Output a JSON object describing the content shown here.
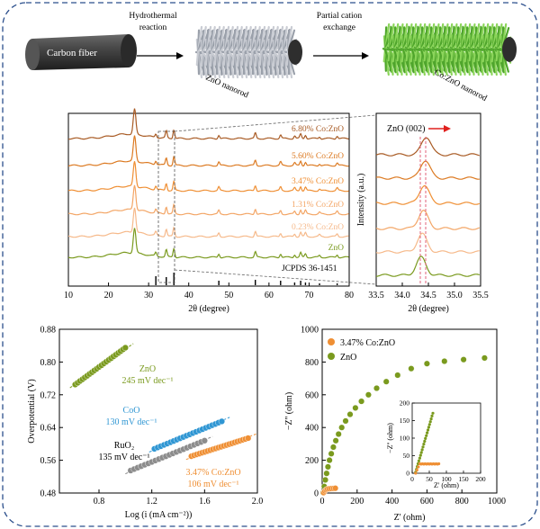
{
  "figure": {
    "schematic": {
      "label_fiber": "Carbon fiber",
      "step1": [
        "Hydrothermal",
        "reaction"
      ],
      "label_nanorod": "ZnO nanorod",
      "step2": [
        "Partial cation",
        "exchange"
      ],
      "label_co_nanorod": "Co:ZnO nanorod"
    },
    "colors": {
      "ZnO": "#7a9a1e",
      "0.23%": "#f6b98a",
      "1.31%": "#f3a565",
      "3.47%": "#ef8f34",
      "5.60%": "#dc7a22",
      "6.80%": "#a85a23",
      "CoO": "#2f96d3",
      "RuO2": "#8c8c8c",
      "fiber": "#3a3a3a"
    }
  },
  "chart_data": [
    {
      "type": "line",
      "panel": "XRD",
      "xlabel": "2θ (degree)",
      "ylabel": "",
      "xlim": [
        10,
        80
      ],
      "xticks": [
        10,
        20,
        30,
        40,
        50,
        60,
        70,
        80
      ],
      "series": [
        {
          "name": "6.80% Co:ZnO"
        },
        {
          "name": "5.60% Co:ZnO"
        },
        {
          "name": "3.47% Co:ZnO"
        },
        {
          "name": "1.31% Co:ZnO"
        },
        {
          "name": "0.23% Co:ZnO"
        },
        {
          "name": "ZnO"
        }
      ],
      "peaks": [
        26.5,
        31.8,
        34.4,
        36.3,
        47.5,
        56.6,
        62.9,
        66.4,
        67.9,
        69.1,
        72.6,
        77.0
      ],
      "reference": {
        "name": "JCPDS 36-1451",
        "positions": [
          31.8,
          34.4,
          36.3,
          47.5,
          56.6,
          62.9,
          66.4,
          67.9,
          69.1,
          72.6,
          77.0
        ]
      }
    },
    {
      "type": "line",
      "panel": "XRD zoom",
      "title": "ZnO (002)",
      "xlabel": "2θ (degree)",
      "ylabel": "Intensity (a.u.)",
      "xlim": [
        33.5,
        35.5
      ],
      "xticks": [
        "33.5",
        "34.0",
        "34.5",
        "35.0",
        "35.5"
      ],
      "reference_lines": [
        34.35,
        34.45
      ]
    },
    {
      "type": "scatter",
      "panel": "Tafel",
      "xlabel": "Log (i (mA cm⁻²))",
      "ylabel": "Overpotential (V)",
      "xlim": [
        0.5,
        2.0
      ],
      "ylim": [
        0.48,
        0.88
      ],
      "xticks": [
        "0.8",
        "1.2",
        "1.6",
        "2.0"
      ],
      "yticks": [
        "0.48",
        "0.56",
        "0.64",
        "0.72",
        "0.80",
        "0.88"
      ],
      "series": [
        {
          "name": "ZnO",
          "label": "ZnO",
          "slope": "245 mV dec⁻¹",
          "x0": 0.62,
          "x1": 1.0,
          "y0": 0.745,
          "y1": 0.835
        },
        {
          "name": "CoO",
          "label": "CoO",
          "slope": "130 mV dec⁻¹",
          "x0": 1.22,
          "x1": 1.73,
          "y0": 0.588,
          "y1": 0.655
        },
        {
          "name": "RuO2",
          "label": "RuO₂",
          "slope": "135 mV dec⁻¹",
          "x0": 1.04,
          "x1": 1.6,
          "y0": 0.535,
          "y1": 0.608
        },
        {
          "name": "3.47%",
          "label": "3.47% Co:ZnO",
          "slope": "106 mV dec⁻¹",
          "x0": 1.5,
          "x1": 1.93,
          "y0": 0.57,
          "y1": 0.614
        }
      ]
    },
    {
      "type": "scatter",
      "panel": "Nyquist",
      "xlabel": "Z' (ohm)",
      "ylabel": "−Z'' (ohm)",
      "xlim": [
        0,
        1000
      ],
      "ylim": [
        0,
        1000
      ],
      "xticks": [
        "0",
        "200",
        "400",
        "600",
        "800",
        "1000"
      ],
      "yticks": [
        "0",
        "200",
        "400",
        "600",
        "800",
        "1000"
      ],
      "legend": [
        "3.47% Co:ZnO",
        "ZnO"
      ],
      "inset": {
        "xlabel": "Z' (ohm)",
        "ylabel": "−Z'' (ohm)",
        "xticks": [
          "0",
          "50",
          "100",
          "150",
          "200"
        ],
        "yticks": [
          "0",
          "50",
          "100",
          "150",
          "200"
        ],
        "xlim": [
          0,
          200
        ],
        "ylim": [
          0,
          200
        ]
      }
    }
  ]
}
